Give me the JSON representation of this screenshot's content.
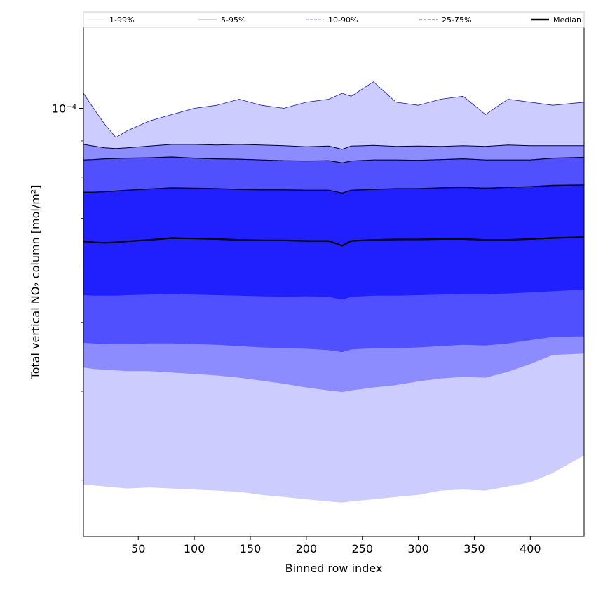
{
  "chart_data": {
    "type": "area",
    "title": "",
    "xlabel": "Binned row index",
    "ylabel": "Total vertical NO₂ column [mol/m²]",
    "x_scale": "linear",
    "y_scale": "log",
    "xlim": [
      1,
      448
    ],
    "ylim": [
      2.5e-05,
      0.00013
    ],
    "x_ticks": [
      50,
      100,
      150,
      200,
      250,
      300,
      350,
      400
    ],
    "y_major_tick_label": "10⁻⁴",
    "y_major_tick_value": 0.0001,
    "grid": false,
    "legend_position": "top",
    "legend": [
      {
        "label": "1-99%",
        "style": "solid",
        "color": "#e6e6f5"
      },
      {
        "label": "5-95%",
        "style": "solid",
        "color": "#a0a0dd"
      },
      {
        "label": "10-90%",
        "style": "dashed",
        "color": "#8c8cf0"
      },
      {
        "label": "25-75%",
        "style": "dashed",
        "color": "#5050e0"
      },
      {
        "label": "Median",
        "style": "solid",
        "color": "#000000"
      }
    ],
    "x": [
      1,
      10,
      20,
      30,
      40,
      60,
      80,
      100,
      120,
      140,
      160,
      180,
      200,
      220,
      232,
      240,
      260,
      280,
      300,
      320,
      340,
      360,
      380,
      400,
      420,
      448
    ],
    "series": [
      {
        "name": "P1",
        "values": [
          2.96e-05,
          2.95e-05,
          2.94e-05,
          2.93e-05,
          2.92e-05,
          2.93e-05,
          2.92e-05,
          2.91e-05,
          2.9e-05,
          2.89e-05,
          2.86e-05,
          2.84e-05,
          2.82e-05,
          2.8e-05,
          2.79e-05,
          2.8e-05,
          2.82e-05,
          2.84e-05,
          2.86e-05,
          2.9e-05,
          2.91e-05,
          2.9e-05,
          2.94e-05,
          2.98e-05,
          3.07e-05,
          3.25e-05
        ]
      },
      {
        "name": "P99",
        "values": [
          0.000105,
          0.0001,
          9.5e-05,
          9.1e-05,
          9.3e-05,
          9.6e-05,
          9.8e-05,
          0.0001,
          0.000101,
          0.000103,
          0.000101,
          0.0001,
          0.000102,
          0.000103,
          0.000105,
          0.000104,
          0.000109,
          0.000102,
          0.000101,
          0.000103,
          0.000104,
          9.8e-05,
          0.000103,
          0.000102,
          0.000101,
          0.000102
        ]
      },
      {
        "name": "P5",
        "values": [
          4.32e-05,
          4.3e-05,
          4.29e-05,
          4.28e-05,
          4.27e-05,
          4.27e-05,
          4.25e-05,
          4.23e-05,
          4.21e-05,
          4.18e-05,
          4.14e-05,
          4.1e-05,
          4.05e-05,
          4.01e-05,
          3.99e-05,
          4.01e-05,
          4.05e-05,
          4.08e-05,
          4.13e-05,
          4.17e-05,
          4.19e-05,
          4.18e-05,
          4.26e-05,
          4.37e-05,
          4.5e-05,
          4.52e-05
        ]
      },
      {
        "name": "P95",
        "values": [
          8.9e-05,
          8.85e-05,
          8.8e-05,
          8.78e-05,
          8.8e-05,
          8.85e-05,
          8.9e-05,
          8.9e-05,
          8.88e-05,
          8.9e-05,
          8.88e-05,
          8.86e-05,
          8.83e-05,
          8.85e-05,
          8.76e-05,
          8.85e-05,
          8.87e-05,
          8.84e-05,
          8.85e-05,
          8.84e-05,
          8.86e-05,
          8.84e-05,
          8.88e-05,
          8.86e-05,
          8.86e-05,
          8.86e-05
        ]
      },
      {
        "name": "P10",
        "values": [
          4.68e-05,
          4.67e-05,
          4.66e-05,
          4.66e-05,
          4.66e-05,
          4.67e-05,
          4.67e-05,
          4.66e-05,
          4.65e-05,
          4.63e-05,
          4.61e-05,
          4.6e-05,
          4.59e-05,
          4.57e-05,
          4.54e-05,
          4.58e-05,
          4.6e-05,
          4.6e-05,
          4.61e-05,
          4.63e-05,
          4.65e-05,
          4.64e-05,
          4.67e-05,
          4.72e-05,
          4.77e-05,
          4.78e-05
        ]
      },
      {
        "name": "P90",
        "values": [
          8.46e-05,
          8.47e-05,
          8.49e-05,
          8.5e-05,
          8.51e-05,
          8.52e-05,
          8.54e-05,
          8.51e-05,
          8.49e-05,
          8.48e-05,
          8.46e-05,
          8.44e-05,
          8.43e-05,
          8.44e-05,
          8.38e-05,
          8.43e-05,
          8.46e-05,
          8.46e-05,
          8.45e-05,
          8.47e-05,
          8.49e-05,
          8.46e-05,
          8.46e-05,
          8.46e-05,
          8.51e-05,
          8.53e-05
        ]
      },
      {
        "name": "P25",
        "values": [
          5.46e-05,
          5.45e-05,
          5.45e-05,
          5.45e-05,
          5.46e-05,
          5.47e-05,
          5.48e-05,
          5.47e-05,
          5.46e-05,
          5.45e-05,
          5.44e-05,
          5.43e-05,
          5.44e-05,
          5.43e-05,
          5.38e-05,
          5.43e-05,
          5.45e-05,
          5.45e-05,
          5.46e-05,
          5.47e-05,
          5.48e-05,
          5.48e-05,
          5.49e-05,
          5.51e-05,
          5.53e-05,
          5.56e-05
        ]
      },
      {
        "name": "P75",
        "values": [
          7.62e-05,
          7.62e-05,
          7.63e-05,
          7.65e-05,
          7.67e-05,
          7.7e-05,
          7.73e-05,
          7.72e-05,
          7.71e-05,
          7.69e-05,
          7.68e-05,
          7.68e-05,
          7.67e-05,
          7.67e-05,
          7.6e-05,
          7.67e-05,
          7.69e-05,
          7.71e-05,
          7.71e-05,
          7.73e-05,
          7.74e-05,
          7.72e-05,
          7.74e-05,
          7.76e-05,
          7.79e-05,
          7.8e-05
        ]
      },
      {
        "name": "Median",
        "values": [
          6.5e-05,
          6.48e-05,
          6.47e-05,
          6.48e-05,
          6.5e-05,
          6.53e-05,
          6.57e-05,
          6.56e-05,
          6.55e-05,
          6.53e-05,
          6.52e-05,
          6.52e-05,
          6.51e-05,
          6.51e-05,
          6.41e-05,
          6.51e-05,
          6.53e-05,
          6.54e-05,
          6.54e-05,
          6.55e-05,
          6.55e-05,
          6.53e-05,
          6.53e-05,
          6.55e-05,
          6.57e-05,
          6.59e-05
        ]
      }
    ]
  },
  "colors": {
    "band_outer": "#ccccff",
    "band_5_95": "#8c8cff",
    "band_10_90": "#5050ff",
    "band_25_75": "#2020ff",
    "line_99": "#1a1aa0",
    "line_inner": "#000033",
    "median": "#000000"
  }
}
